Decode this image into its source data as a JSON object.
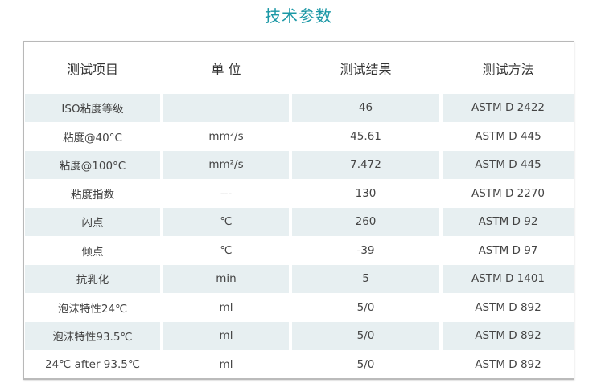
{
  "title": "技术参数",
  "headers": [
    "测试项目",
    "单 位",
    "测试结果",
    "测试方法"
  ],
  "rows": [
    [
      "ISO粘度等级",
      "",
      "46",
      "ASTM D 2422"
    ],
    [
      "粘度@40°C",
      "mm²/s",
      "45.61",
      "ASTM D 445"
    ],
    [
      "粘度@100°C",
      "mm²/s",
      "7.472",
      "ASTM D 445"
    ],
    [
      "粘度指数",
      "---",
      "130",
      "ASTM D 2270"
    ],
    [
      "闪点",
      "℃",
      "260",
      "ASTM D 92"
    ],
    [
      "倾点",
      "℃",
      "-39",
      "ASTM D 97"
    ],
    [
      "抗乳化",
      "min",
      "5",
      "ASTM D 1401"
    ],
    [
      "泡沫特性24℃",
      "ml",
      "5/0",
      "ASTM D 892"
    ],
    [
      "泡沫特性93.5℃",
      "ml",
      "5/0",
      "ASTM D 892"
    ],
    [
      "24℃ after 93.5℃",
      "ml",
      "5/0",
      "ASTM D 892"
    ]
  ],
  "colors": {
    "title": "#1c98a6",
    "stripe": "#e7eff1"
  }
}
